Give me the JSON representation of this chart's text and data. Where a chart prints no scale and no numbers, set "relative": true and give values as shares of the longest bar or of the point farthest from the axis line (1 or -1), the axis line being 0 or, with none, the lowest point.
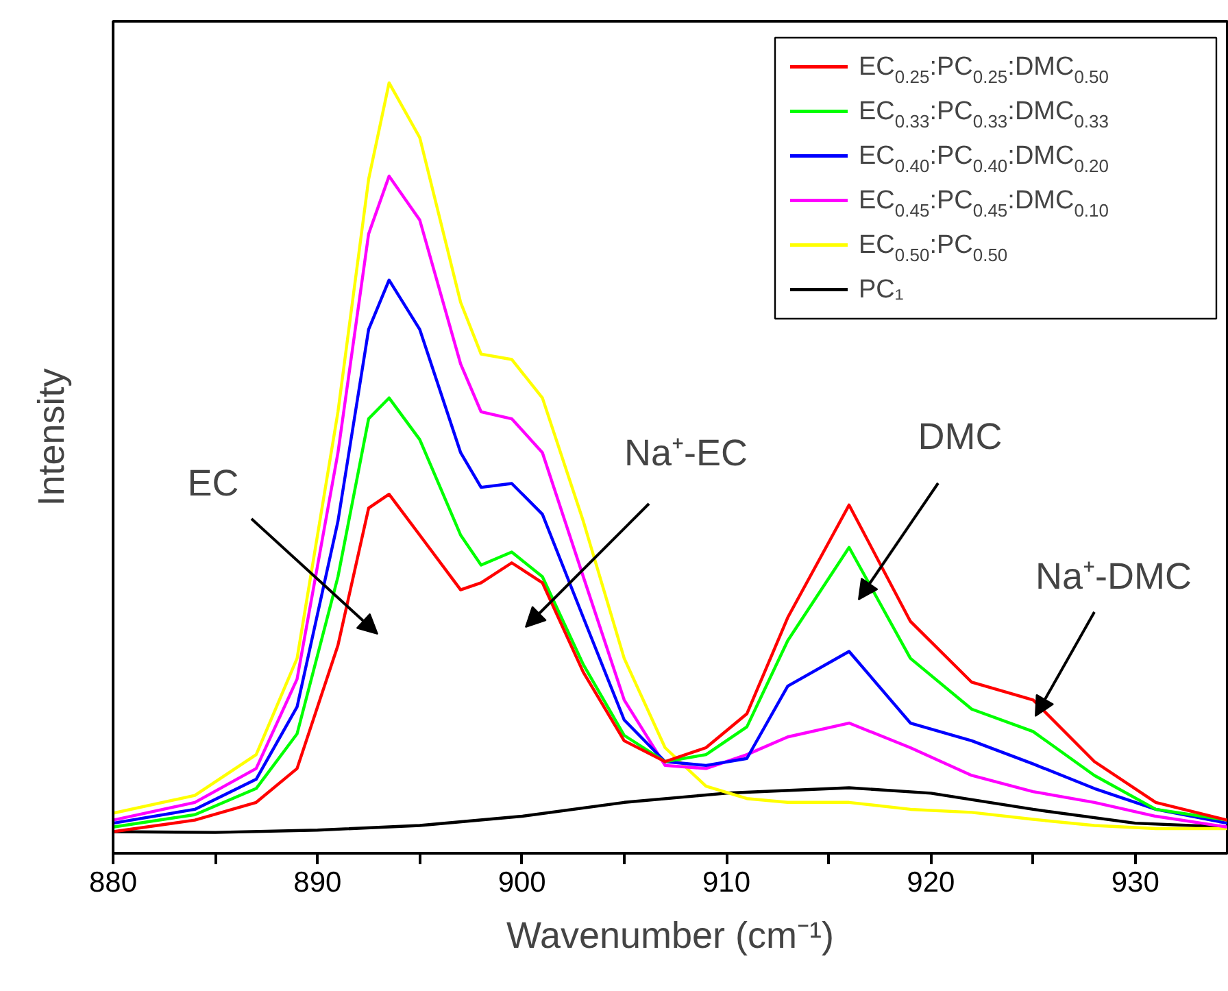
{
  "chart_data": {
    "type": "line",
    "relative": true,
    "xlabel": "Wavenumber (cm⁻¹)",
    "ylabel": "Intensity",
    "x": [
      880,
      884,
      887,
      889,
      891,
      892.5,
      893.5,
      895,
      897,
      898,
      899.5,
      901,
      903,
      905,
      907,
      909,
      911,
      913,
      916,
      919,
      922,
      925,
      928,
      931,
      934.5
    ],
    "xlim": [
      880,
      934.5
    ],
    "xticks": [
      880,
      {
        "value": 885,
        "label": null
      },
      890,
      {
        "value": 895,
        "label": null
      },
      900,
      {
        "value": 905,
        "label": null
      },
      910,
      {
        "value": 915,
        "label": null
      },
      920,
      {
        "value": 925,
        "label": null
      },
      930
    ],
    "series": [
      {
        "name": "EC$_{0.25}$:PC$_{0.25}$:DMC$_{0.50}$",
        "color": "#ff0000",
        "values": [
          0.028,
          0.043,
          0.066,
          0.11,
          0.27,
          0.448,
          0.466,
          0.413,
          0.342,
          0.351,
          0.377,
          0.351,
          0.235,
          0.146,
          0.119,
          0.137,
          0.181,
          0.306,
          0.452,
          0.301,
          0.222,
          0.199,
          0.119,
          0.066,
          0.043
        ]
      },
      {
        "name": "EC$_{0.33}$:PC$_{0.33}$:DMC$_{0.33}$",
        "color": "#00ff00",
        "values": [
          0.034,
          0.05,
          0.084,
          0.155,
          0.359,
          0.564,
          0.591,
          0.537,
          0.413,
          0.374,
          0.391,
          0.359,
          0.245,
          0.153,
          0.119,
          0.128,
          0.164,
          0.276,
          0.397,
          0.253,
          0.187,
          0.158,
          0.101,
          0.057,
          0.043
        ]
      },
      {
        "name": "EC$_{0.40}$:PC$_{0.40}$:DMC$_{0.20}$",
        "color": "#0000ff",
        "values": [
          0.039,
          0.057,
          0.096,
          0.19,
          0.431,
          0.68,
          0.744,
          0.68,
          0.52,
          0.475,
          0.48,
          0.44,
          0.306,
          0.173,
          0.119,
          0.114,
          0.123,
          0.217,
          0.262,
          0.169,
          0.146,
          0.116,
          0.084,
          0.057,
          0.039
        ]
      },
      {
        "name": "EC$_{0.45}$:PC$_{0.45}$:DMC$_{0.10}$",
        "color": "#ff00ff",
        "values": [
          0.043,
          0.066,
          0.11,
          0.226,
          0.52,
          0.804,
          0.879,
          0.822,
          0.635,
          0.573,
          0.564,
          0.52,
          0.359,
          0.199,
          0.114,
          0.11,
          0.128,
          0.151,
          0.169,
          0.137,
          0.101,
          0.08,
          0.066,
          0.048,
          0.034
        ]
      },
      {
        "name": "EC$_{0.50}$:PC$_{0.50}$",
        "color": "#ffff00",
        "values": [
          0.052,
          0.075,
          0.128,
          0.253,
          0.573,
          0.875,
          1.0,
          0.929,
          0.715,
          0.648,
          0.641,
          0.591,
          0.431,
          0.253,
          0.137,
          0.087,
          0.071,
          0.066,
          0.066,
          0.057,
          0.053,
          0.044,
          0.036,
          0.032,
          0.032
        ]
      },
      {
        "name": "PC₁",
        "color": "#000000",
        "x": [
          880,
          885,
          890,
          895,
          900,
          905,
          910,
          916,
          920,
          925,
          930,
          934.5
        ],
        "values": [
          0.028,
          0.027,
          0.03,
          0.036,
          0.048,
          0.066,
          0.078,
          0.085,
          0.078,
          0.057,
          0.039,
          0.034
        ]
      }
    ],
    "annotations": [
      "EC",
      "Na⁺-EC",
      "DMC",
      "Na⁺-DMC"
    ],
    "legend": "top right",
    "grid": false,
    "marker": "none",
    "line_style": "solid"
  }
}
